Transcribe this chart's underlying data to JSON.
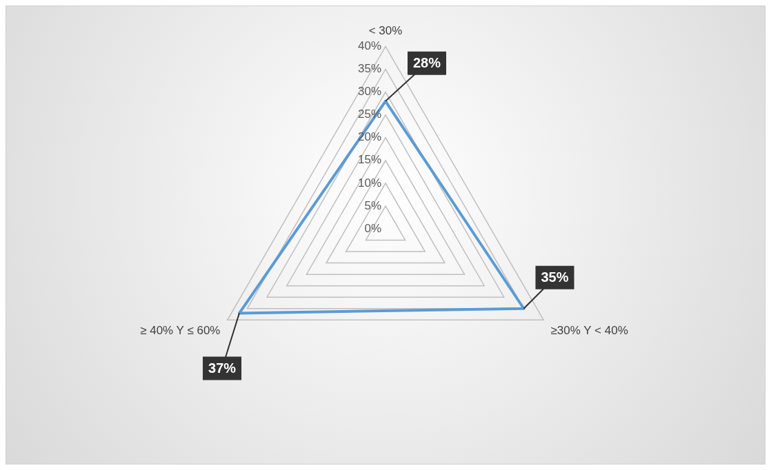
{
  "chart_data": {
    "type": "radar",
    "categories": [
      "< 30%",
      "≥30% Y < 40%",
      "≥ 40% Y ≤ 60%"
    ],
    "series": [
      {
        "color": "#5b9bd5",
        "values": [
          28,
          35,
          37
        ],
        "value_labels": [
          "28%",
          "35%",
          "37%"
        ]
      }
    ],
    "ylim": [
      0,
      40
    ],
    "yticks": [
      {
        "value": 0,
        "label": "0%"
      },
      {
        "value": 5,
        "label": "5%"
      },
      {
        "value": 10,
        "label": "10%"
      },
      {
        "value": 15,
        "label": "15%"
      },
      {
        "value": 20,
        "label": "20%"
      },
      {
        "value": 25,
        "label": "25%"
      },
      {
        "value": 30,
        "label": "30%"
      },
      {
        "value": 35,
        "label": "35%"
      },
      {
        "value": 40,
        "label": "40%"
      }
    ],
    "grid": true,
    "legend": false,
    "marker": "none",
    "line_style": "solid"
  }
}
